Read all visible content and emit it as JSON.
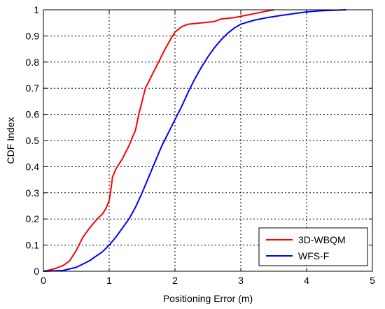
{
  "chart_data": {
    "type": "line",
    "title": "",
    "xlabel": "Positioning Error (m)",
    "ylabel": "CDF Index",
    "xlim": [
      0,
      5
    ],
    "ylim": [
      0,
      1
    ],
    "xticks": [
      "0",
      "1",
      "2",
      "3",
      "4",
      "5"
    ],
    "yticks": [
      "0",
      "0.1",
      "0.2",
      "0.3",
      "0.4",
      "0.5",
      "0.6",
      "0.7",
      "0.8",
      "0.9",
      "1"
    ],
    "grid": true,
    "legend_position": "bottom-right",
    "series": [
      {
        "name": "3D-WBQM",
        "color": "#ff0000",
        "points": [
          [
            0,
            0
          ],
          [
            0.1,
            0.005
          ],
          [
            0.2,
            0.012
          ],
          [
            0.3,
            0.022
          ],
          [
            0.4,
            0.04
          ],
          [
            0.5,
            0.08
          ],
          [
            0.6,
            0.13
          ],
          [
            0.7,
            0.165
          ],
          [
            0.8,
            0.195
          ],
          [
            0.9,
            0.22
          ],
          [
            0.95,
            0.24
          ],
          [
            1.0,
            0.27
          ],
          [
            1.03,
            0.32
          ],
          [
            1.05,
            0.36
          ],
          [
            1.1,
            0.39
          ],
          [
            1.2,
            0.43
          ],
          [
            1.3,
            0.48
          ],
          [
            1.4,
            0.54
          ],
          [
            1.45,
            0.6
          ],
          [
            1.5,
            0.65
          ],
          [
            1.55,
            0.7
          ],
          [
            1.65,
            0.75
          ],
          [
            1.75,
            0.8
          ],
          [
            1.85,
            0.85
          ],
          [
            1.95,
            0.895
          ],
          [
            2.0,
            0.915
          ],
          [
            2.1,
            0.935
          ],
          [
            2.2,
            0.945
          ],
          [
            2.4,
            0.95
          ],
          [
            2.6,
            0.955
          ],
          [
            2.7,
            0.965
          ],
          [
            2.9,
            0.97
          ],
          [
            3.1,
            0.98
          ],
          [
            3.3,
            0.99
          ],
          [
            3.5,
            1.0
          ]
        ]
      },
      {
        "name": "WFS-F",
        "color": "#0000ff",
        "points": [
          [
            0,
            0
          ],
          [
            0.3,
            0.003
          ],
          [
            0.5,
            0.015
          ],
          [
            0.7,
            0.04
          ],
          [
            0.9,
            0.075
          ],
          [
            1.0,
            0.1
          ],
          [
            1.1,
            0.13
          ],
          [
            1.2,
            0.165
          ],
          [
            1.3,
            0.2
          ],
          [
            1.4,
            0.245
          ],
          [
            1.5,
            0.3
          ],
          [
            1.6,
            0.36
          ],
          [
            1.7,
            0.42
          ],
          [
            1.8,
            0.48
          ],
          [
            1.9,
            0.53
          ],
          [
            2.0,
            0.58
          ],
          [
            2.1,
            0.63
          ],
          [
            2.2,
            0.685
          ],
          [
            2.3,
            0.735
          ],
          [
            2.4,
            0.78
          ],
          [
            2.5,
            0.82
          ],
          [
            2.6,
            0.855
          ],
          [
            2.7,
            0.885
          ],
          [
            2.8,
            0.91
          ],
          [
            2.9,
            0.93
          ],
          [
            3.0,
            0.945
          ],
          [
            3.2,
            0.96
          ],
          [
            3.4,
            0.97
          ],
          [
            3.6,
            0.978
          ],
          [
            3.8,
            0.985
          ],
          [
            4.0,
            0.992
          ],
          [
            4.2,
            0.996
          ],
          [
            4.4,
            0.998
          ],
          [
            4.6,
            1.0
          ]
        ]
      }
    ]
  }
}
